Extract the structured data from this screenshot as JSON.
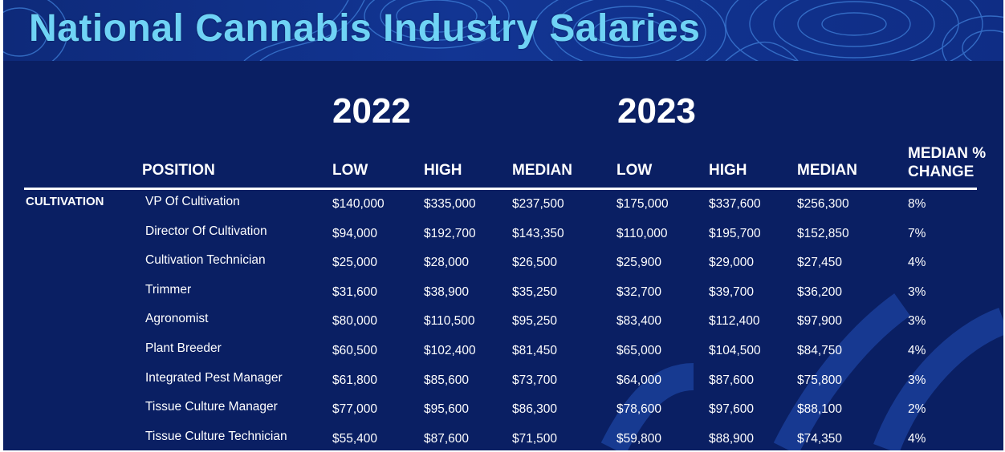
{
  "title": "National Cannabis Industry Salaries",
  "colors": {
    "background": "#0a1f63",
    "title": "#6fd3f5",
    "text": "#ffffff",
    "accent": "#2a5cc8"
  },
  "years": [
    "2022",
    "2023"
  ],
  "headers": {
    "position": "POSITION",
    "low_2022": "LOW",
    "high_2022": "HIGH",
    "median_2022": "MEDIAN",
    "low_2023": "LOW",
    "high_2023": "HIGH",
    "median_2023": "MEDIAN",
    "change": "MEDIAN % CHANGE"
  },
  "section": "CULTIVATION",
  "rows": [
    {
      "position": "VP Of Cultivation",
      "low_2022": "$140,000",
      "high_2022": "$335,000",
      "median_2022": "$237,500",
      "low_2023": "$175,000",
      "high_2023": "$337,600",
      "median_2023": "$256,300",
      "change": "8%"
    },
    {
      "position": "Director Of Cultivation",
      "low_2022": "$94,000",
      "high_2022": "$192,700",
      "median_2022": "$143,350",
      "low_2023": "$110,000",
      "high_2023": "$195,700",
      "median_2023": "$152,850",
      "change": "7%"
    },
    {
      "position": "Cultivation Technician",
      "low_2022": "$25,000",
      "high_2022": "$28,000",
      "median_2022": "$26,500",
      "low_2023": "$25,900",
      "high_2023": "$29,000",
      "median_2023": "$27,450",
      "change": "4%"
    },
    {
      "position": "Trimmer",
      "low_2022": "$31,600",
      "high_2022": "$38,900",
      "median_2022": "$35,250",
      "low_2023": "$32,700",
      "high_2023": "$39,700",
      "median_2023": "$36,200",
      "change": "3%"
    },
    {
      "position": "Agronomist",
      "low_2022": "$80,000",
      "high_2022": "$110,500",
      "median_2022": "$95,250",
      "low_2023": "$83,400",
      "high_2023": "$112,400",
      "median_2023": "$97,900",
      "change": "3%"
    },
    {
      "position": "Plant Breeder",
      "low_2022": "$60,500",
      "high_2022": "$102,400",
      "median_2022": "$81,450",
      "low_2023": "$65,000",
      "high_2023": "$104,500",
      "median_2023": "$84,750",
      "change": "4%"
    },
    {
      "position": "Integrated Pest Manager",
      "low_2022": "$61,800",
      "high_2022": "$85,600",
      "median_2022": "$73,700",
      "low_2023": "$64,000",
      "high_2023": "$87,600",
      "median_2023": "$75,800",
      "change": "3%"
    },
    {
      "position": "Tissue Culture Manager",
      "low_2022": "$77,000",
      "high_2022": "$95,600",
      "median_2022": "$86,300",
      "low_2023": "$78,600",
      "high_2023": "$97,600",
      "median_2023": "$88,100",
      "change": "2%"
    },
    {
      "position": "Tissue Culture Technician",
      "low_2022": "$55,400",
      "high_2022": "$87,600",
      "median_2022": "$71,500",
      "low_2023": "$59,800",
      "high_2023": "$88,900",
      "median_2023": "$74,350",
      "change": "4%"
    }
  ]
}
